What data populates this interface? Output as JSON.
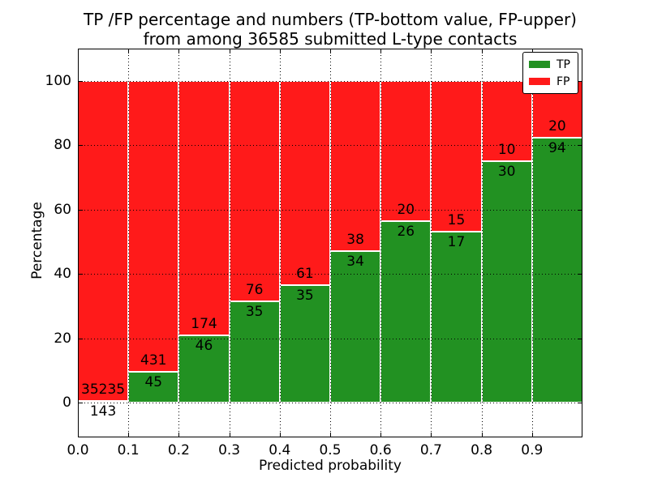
{
  "chart_data": {
    "type": "bar",
    "stacked": true,
    "normalized_to_percent": true,
    "title": "TP /FP percentage and numbers (TP-bottom value, FP-upper) from among 36585 submitted L-type contacts",
    "title_lines": [
      "TP /FP percentage and numbers (TP-bottom value, FP-upper)",
      "from among 36585 submitted L-type contacts"
    ],
    "xlabel": "Predicted probability",
    "ylabel": "Percentage",
    "total_contacts": 36585,
    "categories": [
      "0.0-0.1",
      "0.1-0.2",
      "0.2-0.3",
      "0.3-0.4",
      "0.4-0.5",
      "0.5-0.6",
      "0.6-0.7",
      "0.7-0.8",
      "0.8-0.9",
      "0.9-1.0"
    ],
    "bin_edges": [
      0.0,
      0.1,
      0.2,
      0.3,
      0.4,
      0.5,
      0.6,
      0.7,
      0.8,
      0.9,
      1.0
    ],
    "series": [
      {
        "name": "TP",
        "color": "#229122",
        "counts": [
          143,
          45,
          46,
          35,
          35,
          34,
          26,
          17,
          30,
          94
        ],
        "percentages": [
          0.4,
          9.45,
          20.91,
          31.53,
          36.46,
          47.22,
          56.52,
          53.13,
          75.0,
          82.46
        ]
      },
      {
        "name": "FP",
        "color": "#ff1a1a",
        "counts": [
          35235,
          431,
          174,
          76,
          61,
          38,
          20,
          15,
          10,
          20
        ],
        "percentages": [
          99.6,
          90.55,
          79.09,
          68.47,
          63.54,
          52.78,
          43.48,
          46.88,
          25.0,
          17.54
        ]
      }
    ],
    "bar_value_label_rule": "FP count drawn just above the TP/FP boundary, TP count just below it",
    "xticklabels": [
      "0.0",
      "0.1",
      "0.2",
      "0.3",
      "0.4",
      "0.5",
      "0.6",
      "0.7",
      "0.8",
      "0.9"
    ],
    "yticks": [
      0,
      20,
      40,
      60,
      80,
      100
    ],
    "yticklabels": [
      "0",
      "20",
      "40",
      "60",
      "80",
      "100"
    ],
    "xlim": [
      0,
      1
    ],
    "ylim": [
      -11,
      110
    ],
    "grid": {
      "style": "dotted",
      "color": "#000000"
    },
    "legend": {
      "position": "upper right",
      "items": [
        {
          "label": "TP",
          "color": "#229122"
        },
        {
          "label": "FP",
          "color": "#ff1a1a"
        }
      ]
    }
  }
}
